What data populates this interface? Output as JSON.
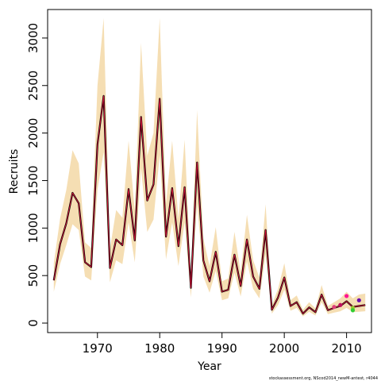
{
  "chart_data": {
    "type": "line",
    "title": "",
    "xlabel": "Year",
    "ylabel": "Recruits",
    "xlim": [
      1962,
      2014
    ],
    "ylim": [
      -100,
      3300
    ],
    "x_ticks": [
      1970,
      1980,
      1990,
      2000,
      2010
    ],
    "y_ticks": [
      0,
      500,
      1000,
      1500,
      2000,
      2500,
      3000
    ],
    "grid": false,
    "legend": "none",
    "footnote": "stockassessment.org, NScod2014_newM-antest, r4044",
    "colors": {
      "band": "#f5deb3",
      "estimate": "#000000",
      "retro": "#dc143c"
    },
    "years": [
      1963,
      1964,
      1965,
      1966,
      1967,
      1968,
      1969,
      1970,
      1971,
      1972,
      1973,
      1974,
      1975,
      1976,
      1977,
      1978,
      1979,
      1980,
      1981,
      1982,
      1983,
      1984,
      1985,
      1986,
      1987,
      1988,
      1989,
      1990,
      1991,
      1992,
      1993,
      1994,
      1995,
      1996,
      1997,
      1998,
      1999,
      2000,
      2001,
      2002,
      2003,
      2004,
      2005,
      2006,
      2007,
      2008,
      2009,
      2010,
      2011,
      2012,
      2013
    ],
    "estimate": [
      450,
      830,
      1050,
      1370,
      1260,
      640,
      590,
      1880,
      2390,
      580,
      880,
      820,
      1410,
      870,
      2170,
      1290,
      1460,
      2360,
      910,
      1420,
      810,
      1430,
      370,
      1690,
      660,
      440,
      750,
      330,
      350,
      720,
      390,
      880,
      490,
      360,
      980,
      140,
      270,
      480,
      180,
      220,
      100,
      165,
      115,
      300,
      135,
      160,
      180,
      230,
      170,
      180,
      190
    ],
    "lower": [
      330,
      620,
      820,
      1040,
      980,
      490,
      450,
      1400,
      1800,
      430,
      660,
      620,
      1060,
      640,
      1630,
      960,
      1090,
      1770,
      670,
      1060,
      600,
      1060,
      270,
      1260,
      490,
      320,
      550,
      240,
      260,
      530,
      280,
      650,
      360,
      260,
      720,
      100,
      190,
      350,
      130,
      160,
      70,
      120,
      80,
      220,
      95,
      110,
      125,
      160,
      115,
      120,
      125
    ],
    "upper": [
      630,
      1100,
      1400,
      1820,
      1680,
      850,
      790,
      2500,
      3210,
      780,
      1190,
      1110,
      1920,
      1180,
      2950,
      1760,
      2000,
      3210,
      1250,
      1920,
      1100,
      1930,
      500,
      2240,
      890,
      600,
      1010,
      440,
      470,
      960,
      530,
      1140,
      660,
      480,
      1250,
      190,
      360,
      630,
      240,
      290,
      140,
      220,
      155,
      400,
      180,
      220,
      260,
      330,
      260,
      300,
      310
    ],
    "retro_points": [
      {
        "x": 2008,
        "y": 170,
        "color": "#e0407a"
      },
      {
        "x": 2009,
        "y": 190,
        "color": "#c01060"
      },
      {
        "x": 2010,
        "y": 285,
        "color": "#ff1493"
      },
      {
        "x": 2011,
        "y": 160,
        "color": "#9acd32"
      },
      {
        "x": 2011,
        "y": 135,
        "color": "#32cd32"
      },
      {
        "x": 2012,
        "y": 240,
        "color": "#6a0dad"
      }
    ]
  }
}
